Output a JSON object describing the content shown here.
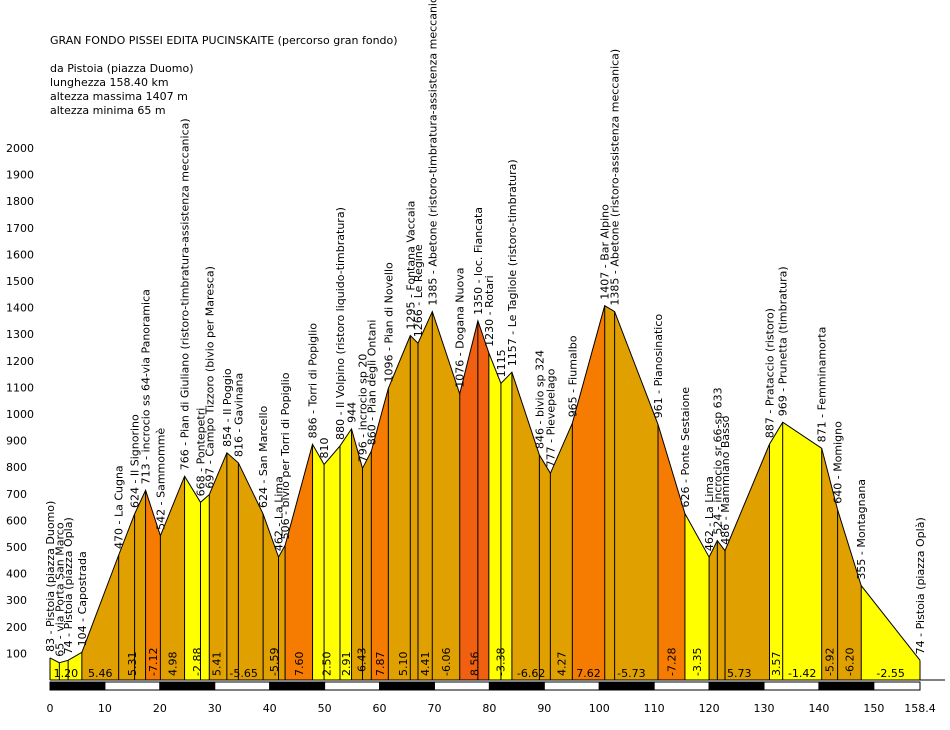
{
  "header": {
    "title": "GRAN FONDO PISSEI EDITA PUCINSKAITE (percorso gran fondo)",
    "info": [
      "da Pistoia (piazza Duomo)",
      "lunghezza 158.40 km",
      "altezza massima 1407 m",
      "altezza minima 65 m"
    ]
  },
  "colors": {
    "low": "#ffff00",
    "mid": "#e0a000",
    "high": "#c88a10",
    "steep": "#f57c00",
    "steepest": "#f06010",
    "outline": "#000000"
  },
  "chart_data": {
    "type": "area",
    "title": "GRAN FONDO PISSEI EDITA PUCINSKAITE (percorso gran fondo)",
    "xlabel": "",
    "ylabel": "",
    "xlim": [
      0,
      158.4
    ],
    "ylim": [
      0,
      2000
    ],
    "y_ticks": [
      100,
      200,
      300,
      400,
      500,
      600,
      700,
      800,
      900,
      1000,
      1100,
      1200,
      1300,
      1400,
      1500,
      1600,
      1700,
      1800,
      1900,
      2000
    ],
    "x_ticks": [
      "0",
      "10",
      "20",
      "30",
      "40",
      "50",
      "60",
      "70",
      "80",
      "90",
      "100",
      "110",
      "120",
      "130",
      "140",
      "150",
      "158.4"
    ],
    "x_tick_values": [
      0,
      10,
      20,
      30,
      40,
      50,
      60,
      70,
      80,
      90,
      100,
      110,
      120,
      130,
      140,
      150,
      158.4
    ],
    "points": [
      {
        "km": 0,
        "alt": 83,
        "label": "83 - Pistoia (piazza Duomo)"
      },
      {
        "km": 1.7,
        "alt": 65,
        "label": "65 - via Porta San Marco"
      },
      {
        "km": 3.3,
        "alt": 74,
        "label": "74 - Pistoia (piazza Opla)"
      },
      {
        "km": 5.8,
        "alt": 104,
        "label": "104 - Capostrada"
      },
      {
        "km": 12.5,
        "alt": 470,
        "label": "470 - La Cugna"
      },
      {
        "km": 15.4,
        "alt": 624,
        "label": "624 - Il Signorino"
      },
      {
        "km": 17.4,
        "alt": 713,
        "label": "713 - incrocio ss 64-via Panoramica"
      },
      {
        "km": 20.1,
        "alt": 542,
        "label": "542 - Sammommè"
      },
      {
        "km": 24.5,
        "alt": 766,
        "label": "766 - Pian di Giuliano (ristoro-timbratura-assistenza meccanica)"
      },
      {
        "km": 27.4,
        "alt": 668,
        "label": "668 - Pontepetri"
      },
      {
        "km": 29.0,
        "alt": 697,
        "label": "697 - Campo Tizzoro (bivio per Maresca)"
      },
      {
        "km": 32.2,
        "alt": 854,
        "label": "854 - Il Poggio"
      },
      {
        "km": 34.3,
        "alt": 816,
        "label": "816 - Gavinana"
      },
      {
        "km": 38.8,
        "alt": 624,
        "label": "624 - San Marcello"
      },
      {
        "km": 41.6,
        "alt": 462,
        "label": "462 - La Lima"
      },
      {
        "km": 42.8,
        "alt": 506,
        "label": "506 - bivio per Torri di Popiglio"
      },
      {
        "km": 47.8,
        "alt": 886,
        "label": "886 - Torri di Popiglio"
      },
      {
        "km": 49.9,
        "alt": 810,
        "label": "810"
      },
      {
        "km": 52.8,
        "alt": 880,
        "label": "880 - Il Volpino (ristoro liquido-timbratura)"
      },
      {
        "km": 54.9,
        "alt": 944,
        "label": "944"
      },
      {
        "km": 56.9,
        "alt": 796,
        "label": "796 - incrocio sp 20"
      },
      {
        "km": 58.5,
        "alt": 860,
        "label": "860 - Pian degli Ontani"
      },
      {
        "km": 61.6,
        "alt": 1096,
        "label": "1096 - Pian di Novello"
      },
      {
        "km": 65.6,
        "alt": 1295,
        "label": "1295 - Fontana Vaccaia"
      },
      {
        "km": 67.0,
        "alt": 1266,
        "label": "1266 - Le Regine"
      },
      {
        "km": 69.6,
        "alt": 1385,
        "label": "1385 - Abetone (ristoro-timbratura-assistenza meccanica)"
      },
      {
        "km": 74.6,
        "alt": 1076,
        "label": "1076 - Dogana Nuova"
      },
      {
        "km": 77.9,
        "alt": 1350,
        "label": "1350 - loc. Fiancata"
      },
      {
        "km": 79.9,
        "alt": 1230,
        "label": "1230 - Rotari"
      },
      {
        "km": 82.1,
        "alt": 1115,
        "label": "1115"
      },
      {
        "km": 84.1,
        "alt": 1157,
        "label": "1157 - Le Tagliole (ristoro-timbratura)"
      },
      {
        "km": 89.1,
        "alt": 846,
        "label": "846 - bivio sp 324"
      },
      {
        "km": 91.1,
        "alt": 777,
        "label": "777 - Pievepelago"
      },
      {
        "km": 95.1,
        "alt": 965,
        "label": "965 - Fiumalbo"
      },
      {
        "km": 101.0,
        "alt": 1407,
        "label": "1407 - Bar Alpino"
      },
      {
        "km": 102.8,
        "alt": 1385,
        "label": "1385 - Abetone (ristoro-assistenza meccanica)"
      },
      {
        "km": 110.7,
        "alt": 961,
        "label": "961 - Pianosinatico"
      },
      {
        "km": 115.6,
        "alt": 626,
        "label": "626 - Ponte Sestaione"
      },
      {
        "km": 120.0,
        "alt": 462,
        "label": "462 - La Lima"
      },
      {
        "km": 121.5,
        "alt": 524,
        "label": "524 - incrocio sr 66-sp 633"
      },
      {
        "km": 122.9,
        "alt": 486,
        "label": "486 - Mammiano Basso"
      },
      {
        "km": 131.0,
        "alt": 887,
        "label": "887 - Prataccio (ristoro)"
      },
      {
        "km": 133.4,
        "alt": 969,
        "label": "969 - Prunetta (timbratura)"
      },
      {
        "km": 140.5,
        "alt": 871,
        "label": "871 - Femminamorta"
      },
      {
        "km": 143.4,
        "alt": 640,
        "label": "640 - Momigno"
      },
      {
        "km": 147.7,
        "alt": 355,
        "label": "355 - Montagnana"
      },
      {
        "km": 158.4,
        "alt": 74,
        "label": "74 - Pistoia (piazza Oplà)"
      }
    ],
    "gradients": [
      {
        "from": 0,
        "to": 5.8,
        "value": "1.20",
        "level": "low"
      },
      {
        "from": 5.8,
        "to": 12.5,
        "value": "5.46",
        "level": "mid"
      },
      {
        "from": 12.5,
        "to": 17.4,
        "value": "5.31",
        "level": "mid"
      },
      {
        "from": 17.4,
        "to": 20.1,
        "value": "-7.12",
        "level": "steep"
      },
      {
        "from": 20.1,
        "to": 24.5,
        "value": "4.98",
        "level": "mid"
      },
      {
        "from": 24.5,
        "to": 29.0,
        "value": "-2.88",
        "level": "low"
      },
      {
        "from": 29.0,
        "to": 31.7,
        "value": "5.41",
        "level": "mid"
      },
      {
        "from": 31.7,
        "to": 38.8,
        "value": "-5.65",
        "level": "mid"
      },
      {
        "from": 38.8,
        "to": 42.8,
        "value": "-5.59",
        "level": "mid"
      },
      {
        "from": 42.8,
        "to": 47.8,
        "value": "7.60",
        "level": "steep"
      },
      {
        "from": 47.8,
        "to": 52.8,
        "value": "2.50",
        "level": "low"
      },
      {
        "from": 52.8,
        "to": 54.9,
        "value": "2.91",
        "level": "low"
      },
      {
        "from": 54.9,
        "to": 58.5,
        "value": "-6.43",
        "level": "mid"
      },
      {
        "from": 58.5,
        "to": 61.6,
        "value": "7.87",
        "level": "steep"
      },
      {
        "from": 61.6,
        "to": 67.0,
        "value": "5.10",
        "level": "mid"
      },
      {
        "from": 67.0,
        "to": 69.6,
        "value": "4.41",
        "level": "mid"
      },
      {
        "from": 69.6,
        "to": 74.6,
        "value": "-6.06",
        "level": "mid"
      },
      {
        "from": 74.6,
        "to": 79.9,
        "value": "8.56",
        "level": "steepest"
      },
      {
        "from": 79.9,
        "to": 84.1,
        "value": "-3.38",
        "level": "low"
      },
      {
        "from": 84.1,
        "to": 91.1,
        "value": "-6.62",
        "level": "mid"
      },
      {
        "from": 91.1,
        "to": 95.1,
        "value": "4.27",
        "level": "mid"
      },
      {
        "from": 95.1,
        "to": 101.0,
        "value": "7.62",
        "level": "steep"
      },
      {
        "from": 101.0,
        "to": 110.7,
        "value": "-5.73",
        "level": "mid"
      },
      {
        "from": 110.7,
        "to": 115.6,
        "value": "-7.28",
        "level": "steep"
      },
      {
        "from": 115.6,
        "to": 120.0,
        "value": "-3.35",
        "level": "low"
      },
      {
        "from": 120.0,
        "to": 131.0,
        "value": "5.73",
        "level": "mid"
      },
      {
        "from": 131.0,
        "to": 133.4,
        "value": "3.57",
        "level": "low"
      },
      {
        "from": 133.4,
        "to": 140.5,
        "value": "-1.42",
        "level": "low"
      },
      {
        "from": 140.5,
        "to": 143.4,
        "value": "-5.92",
        "level": "mid"
      },
      {
        "from": 143.4,
        "to": 147.7,
        "value": "-6.20",
        "level": "mid"
      },
      {
        "from": 147.7,
        "to": 158.4,
        "value": "-2.55",
        "level": "low"
      }
    ]
  }
}
